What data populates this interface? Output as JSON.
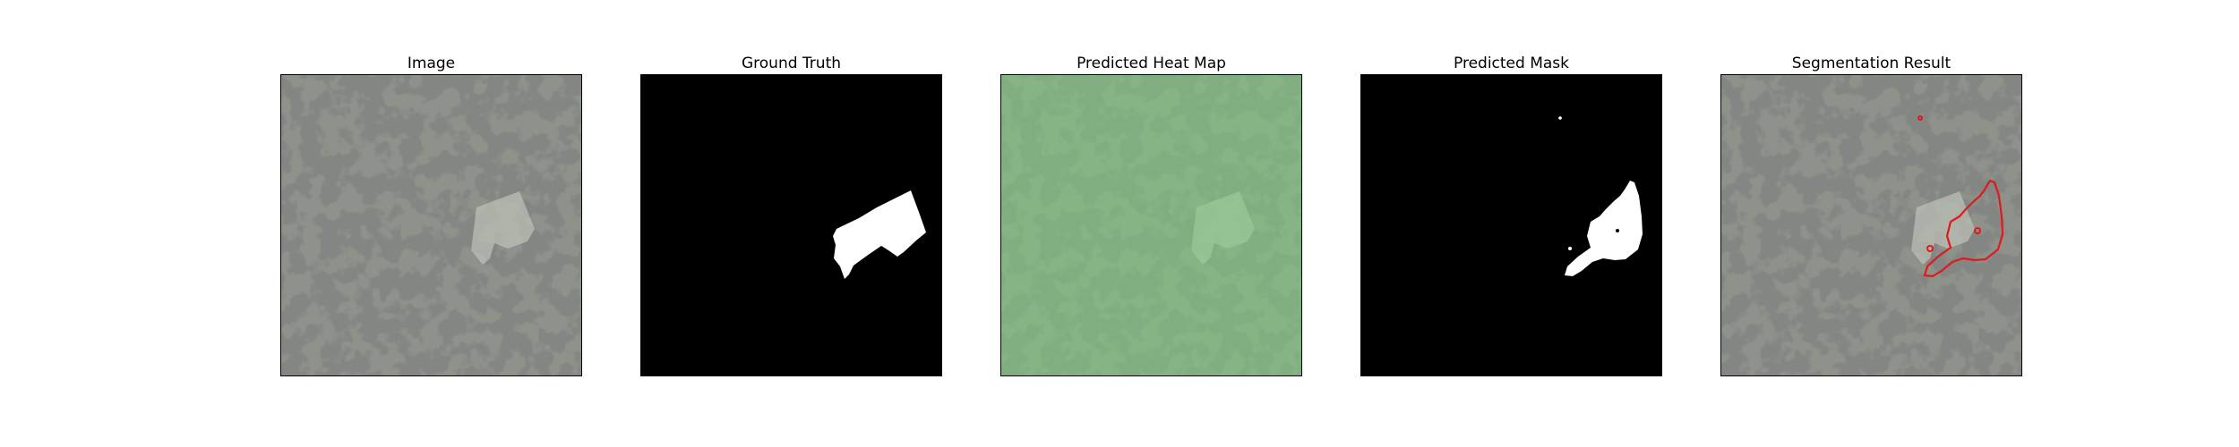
{
  "panels": [
    {
      "id": "image",
      "title": "Image"
    },
    {
      "id": "ground_truth",
      "title": "Ground Truth"
    },
    {
      "id": "heat_map",
      "title": "Predicted Heat Map"
    },
    {
      "id": "mask",
      "title": "Predicted Mask"
    },
    {
      "id": "segmentation",
      "title": "Segmentation Result"
    }
  ],
  "colors": {
    "aerial_base": "#8e928a",
    "aerial_dark": "#3b3d3a",
    "heat_overlay": "#7fd07f",
    "mask_background": "#000000",
    "mask_foreground": "#ffffff",
    "contour": "#e0191b"
  }
}
